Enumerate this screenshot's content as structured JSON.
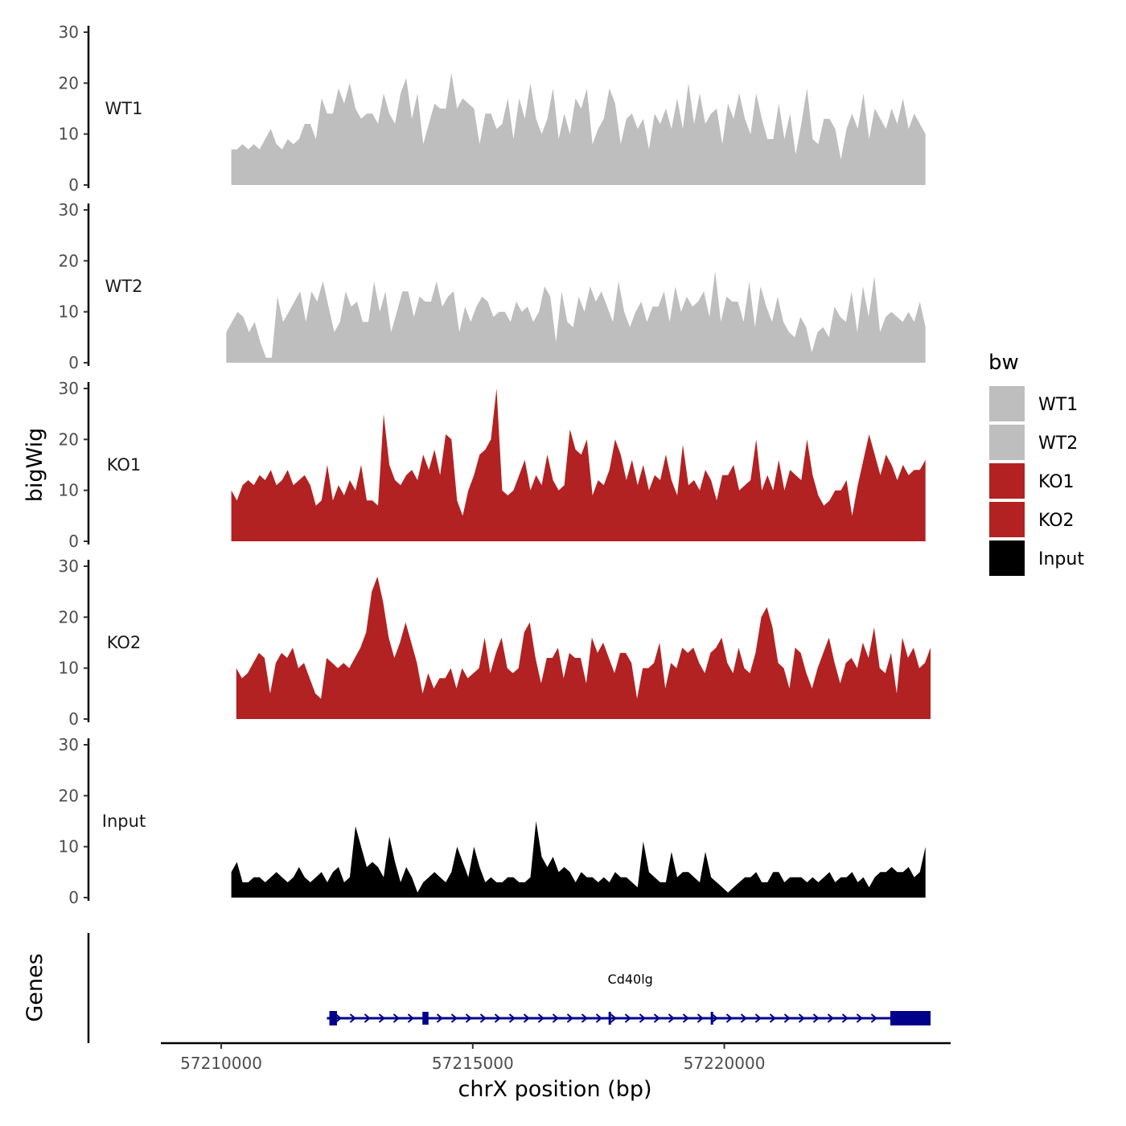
{
  "chart_data": {
    "type": "area",
    "subtype": "genome-browser-coverage-tracks",
    "y_axis_label": "bigWig",
    "x_axis_label": "chrX position (bp)",
    "x_range": [
      57208800,
      57224500
    ],
    "x_ticks": [
      {
        "value": 57210000,
        "label": "57210000"
      },
      {
        "value": 57215000,
        "label": "57215000"
      },
      {
        "value": 57220000,
        "label": "57220000"
      }
    ],
    "y_range": [
      0,
      30
    ],
    "y_ticks": [
      {
        "value": 0,
        "label": "0"
      },
      {
        "value": 10,
        "label": "10"
      },
      {
        "value": 20,
        "label": "20"
      },
      {
        "value": 30,
        "label": "30"
      }
    ],
    "legend": {
      "title": "bw",
      "position": "right",
      "entries": [
        {
          "label": "WT1",
          "color": "#bebebe"
        },
        {
          "label": "WT2",
          "color": "#bebebe"
        },
        {
          "label": "KO1",
          "color": "#b22222"
        },
        {
          "label": "KO2",
          "color": "#b22222"
        },
        {
          "label": "Input",
          "color": "#000000"
        }
      ]
    },
    "tracks": [
      {
        "name": "WT1",
        "color": "#bebebe",
        "x_start": 57210200,
        "x_end": 57224000,
        "values": [
          7,
          7,
          8,
          7,
          8,
          7,
          9,
          11,
          8,
          7,
          9,
          8,
          9,
          12,
          12,
          9,
          17,
          14,
          14,
          19,
          16,
          20,
          15,
          13,
          14,
          14,
          12,
          18,
          14,
          12,
          18,
          21,
          13,
          18,
          8,
          12,
          16,
          15,
          15,
          22,
          15,
          17,
          16,
          15,
          8,
          14,
          14,
          11,
          12,
          17,
          9,
          17,
          13,
          20,
          13,
          10,
          13,
          19,
          9,
          14,
          10,
          17,
          15,
          19,
          8,
          11,
          13,
          19,
          16,
          8,
          13,
          14,
          11,
          13,
          7,
          14,
          12,
          15,
          11,
          17,
          11,
          20,
          12,
          18,
          12,
          14,
          15,
          8,
          16,
          13,
          18,
          13,
          10,
          18,
          13,
          9,
          9,
          16,
          9,
          14,
          6,
          12,
          19,
          9,
          8,
          13,
          13,
          11,
          5,
          11,
          14,
          11,
          18,
          9,
          15,
          13,
          11,
          15,
          12,
          17,
          11,
          14,
          12,
          10
        ]
      },
      {
        "name": "WT2",
        "color": "#bebebe",
        "x_start": 57210100,
        "x_end": 57224000,
        "values": [
          6,
          8,
          10,
          9,
          6,
          8,
          4,
          1,
          1,
          13,
          8,
          10,
          12,
          14,
          8,
          14,
          12,
          16,
          11,
          6,
          8,
          14,
          11,
          12,
          8,
          8,
          16,
          10,
          14,
          6,
          10,
          14,
          14,
          9,
          13,
          12,
          12,
          16,
          11,
          13,
          14,
          6,
          11,
          8,
          11,
          13,
          12,
          9,
          10,
          10,
          8,
          12,
          10,
          11,
          8,
          10,
          15,
          13,
          4,
          14,
          8,
          7,
          13,
          10,
          15,
          12,
          14,
          11,
          8,
          16,
          10,
          7,
          10,
          12,
          8,
          11,
          11,
          14,
          8,
          15,
          10,
          13,
          11,
          12,
          14,
          9,
          18,
          8,
          13,
          12,
          12,
          8,
          16,
          7,
          15,
          11,
          8,
          13,
          8,
          6,
          5,
          9,
          7,
          2,
          6,
          7,
          5,
          11,
          9,
          8,
          14,
          6,
          15,
          9,
          17,
          6,
          9,
          10,
          9,
          8,
          10,
          8,
          12,
          7
        ]
      },
      {
        "name": "KO1",
        "color": "#b22222",
        "x_start": 57210200,
        "x_end": 57224000,
        "values": [
          10,
          8,
          11,
          12,
          11,
          13,
          12,
          14,
          11,
          12,
          14,
          11,
          12,
          13,
          11,
          7,
          8,
          15,
          8,
          11,
          9,
          12,
          10,
          15,
          8,
          8,
          7,
          25,
          15,
          12,
          11,
          13,
          14,
          12,
          17,
          14,
          18,
          13,
          21,
          20,
          8,
          5,
          10,
          13,
          17,
          18,
          20,
          30,
          10,
          9,
          10,
          13,
          16,
          10,
          13,
          11,
          17,
          12,
          10,
          11,
          22,
          18,
          17,
          20,
          9,
          12,
          11,
          14,
          20,
          17,
          12,
          16,
          11,
          15,
          10,
          13,
          12,
          17,
          12,
          9,
          19,
          11,
          12,
          10,
          14,
          12,
          8,
          13,
          13,
          15,
          10,
          11,
          12,
          20,
          10,
          13,
          10,
          16,
          10,
          14,
          13,
          12,
          20,
          13,
          9,
          7,
          8,
          10,
          10,
          12,
          5,
          11,
          16,
          21,
          17,
          13,
          17,
          15,
          12,
          15,
          13,
          14,
          14,
          16
        ]
      },
      {
        "name": "KO2",
        "color": "#b22222",
        "x_start": 57210300,
        "x_end": 57224100,
        "values": [
          10,
          8,
          9,
          11,
          13,
          12,
          5,
          11,
          13,
          12,
          14,
          10,
          11,
          8,
          5,
          4,
          12,
          11,
          10,
          11,
          10,
          12,
          14,
          17,
          25,
          28,
          23,
          16,
          12,
          15,
          19,
          15,
          11,
          5,
          9,
          6,
          8,
          8,
          10,
          6,
          10,
          8,
          9,
          10,
          16,
          9,
          13,
          16,
          10,
          9,
          10,
          17,
          19,
          12,
          7,
          12,
          12,
          14,
          8,
          13,
          12,
          12,
          7,
          16,
          13,
          15,
          12,
          9,
          13,
          13,
          11,
          4,
          10,
          10,
          11,
          15,
          6,
          11,
          10,
          14,
          13,
          14,
          11,
          9,
          13,
          14,
          16,
          11,
          9,
          14,
          10,
          9,
          13,
          20,
          22,
          18,
          11,
          10,
          6,
          14,
          13,
          9,
          6,
          10,
          13,
          16,
          11,
          7,
          11,
          12,
          10,
          15,
          12,
          18,
          10,
          9,
          13,
          5,
          16,
          12,
          14,
          10,
          11,
          14
        ]
      },
      {
        "name": "Input",
        "color": "#000000",
        "x_start": 57210200,
        "x_end": 57224000,
        "values": [
          5,
          7,
          3,
          3,
          4,
          4,
          3,
          4,
          5,
          4,
          3,
          4,
          6,
          4,
          3,
          4,
          5,
          3,
          5,
          6,
          3,
          4,
          14,
          10,
          6,
          7,
          6,
          4,
          12,
          7,
          3,
          6,
          4,
          1,
          3,
          4,
          5,
          4,
          3,
          5,
          10,
          7,
          4,
          10,
          6,
          3,
          4,
          3,
          3,
          4,
          4,
          3,
          3,
          4,
          15,
          8,
          6,
          8,
          5,
          6,
          5,
          3,
          5,
          4,
          4,
          3,
          4,
          3,
          5,
          4,
          4,
          3,
          2,
          11,
          5,
          4,
          3,
          3,
          9,
          4,
          5,
          5,
          4,
          3,
          9,
          4,
          3,
          2,
          1,
          2,
          3,
          4,
          4,
          5,
          3,
          3,
          5,
          5,
          3,
          4,
          4,
          4,
          3,
          4,
          3,
          4,
          5,
          3,
          4,
          4,
          5,
          3,
          4,
          2,
          4,
          5,
          5,
          6,
          5,
          5,
          6,
          4,
          5,
          10
        ]
      }
    ],
    "genes_track": {
      "label": "Genes",
      "color": "#00008b",
      "genes": [
        {
          "name": "Cd40lg",
          "start": 57212100,
          "end": 57224100,
          "strand": "+",
          "exons": [
            {
              "start": 57212150,
              "end": 57212300,
              "type": "utr"
            },
            {
              "start": 57214000,
              "end": 57214120,
              "type": "cds"
            },
            {
              "start": 57217700,
              "end": 57217740,
              "type": "cds"
            },
            {
              "start": 57219730,
              "end": 57219770,
              "type": "cds"
            },
            {
              "start": 57223300,
              "end": 57224100,
              "type": "utr"
            }
          ]
        }
      ]
    }
  }
}
